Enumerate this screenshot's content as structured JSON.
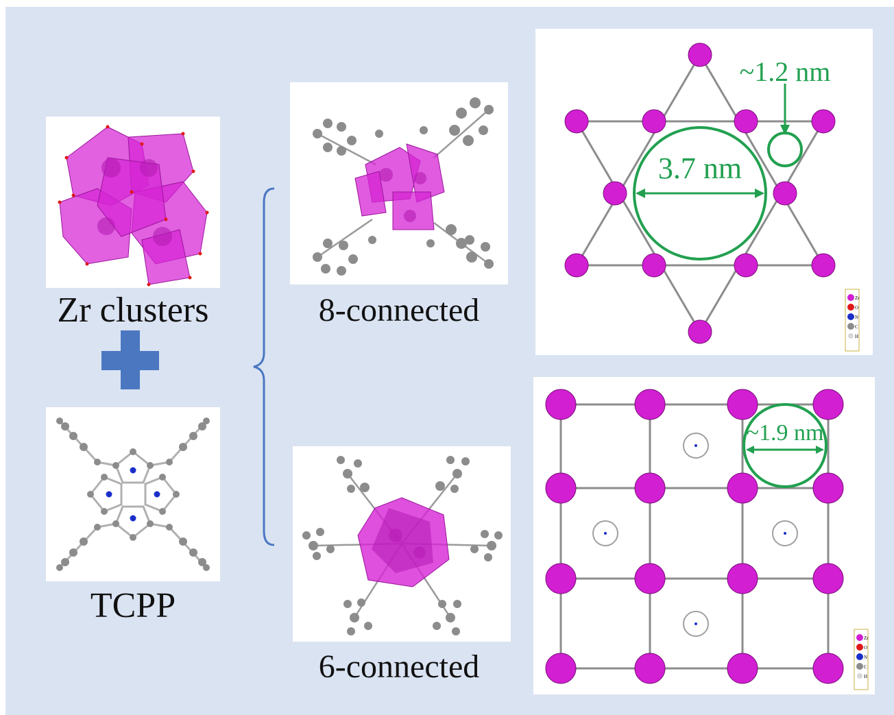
{
  "labels": {
    "zr_clusters": "Zr clusters",
    "tcpp": "TCPP",
    "eight_connected": "8-connected",
    "six_connected": "6-connected"
  },
  "dimensions": {
    "kagome_large_pore": "3.7 nm",
    "kagome_small_pore": "~1.2 nm",
    "square_pore": "~1.9 nm"
  },
  "legend": {
    "elements": [
      "Zr",
      "O",
      "N",
      "C",
      "H"
    ]
  },
  "colors": {
    "background": "#dae3f2",
    "zr_polyhedra": "#d21fd2",
    "carbon": "#8c8c8c",
    "nitrogen": "#1a2fc8",
    "oxygen": "#e01818",
    "dimension_green": "#22a050",
    "plus_sign": "#4a77c0",
    "brace": "#4a77c0"
  }
}
